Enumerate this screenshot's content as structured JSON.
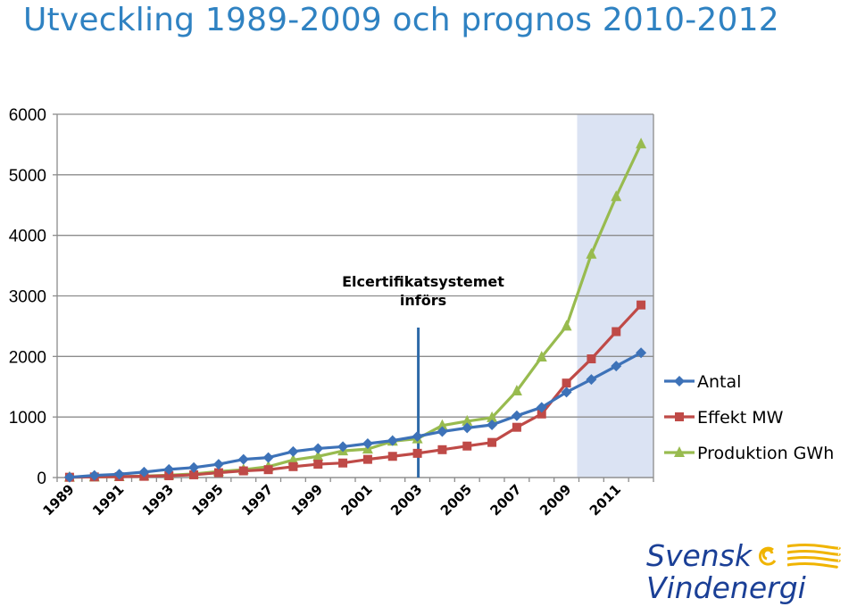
{
  "title": "Utveckling 1989-2009 och prognos 2010-2012",
  "logo": {
    "line1": "Svensk",
    "line2": "Vindenergi"
  },
  "chart_data": {
    "type": "line",
    "x": [
      1989,
      1990,
      1991,
      1992,
      1993,
      1994,
      1995,
      1996,
      1997,
      1998,
      1999,
      2000,
      2001,
      2002,
      2003,
      2004,
      2005,
      2006,
      2007,
      2008,
      2009,
      2010,
      2011,
      2012
    ],
    "x_tick_labels": [
      "1989",
      "1991",
      "1993",
      "1995",
      "1997",
      "1999",
      "2001",
      "2003",
      "2005",
      "2007",
      "2009",
      "2011"
    ],
    "ylim": [
      0,
      6000
    ],
    "y_ticks": [
      0,
      1000,
      2000,
      3000,
      4000,
      5000,
      6000
    ],
    "y_tick_labels": [
      "0",
      "1000",
      "2000",
      "3000",
      "4000",
      "5000",
      "6000"
    ],
    "grid": "horizontal",
    "legend_position": "right",
    "forecast_shading": {
      "from": 2010,
      "to": 2012,
      "color": "#dbe3f3"
    },
    "annotation": {
      "lines": [
        "Elcertifikatsystemet",
        "införs"
      ],
      "x": 2003,
      "color": "#2e6aa8"
    },
    "series": [
      {
        "name": "Antal",
        "color": "#3d72b8",
        "marker": "diamond",
        "values": [
          5,
          35,
          55,
          90,
          135,
          165,
          220,
          300,
          330,
          430,
          480,
          510,
          560,
          610,
          680,
          760,
          820,
          870,
          1020,
          1160,
          1410,
          1620,
          1840,
          2060
        ]
      },
      {
        "name": "Effekt MW",
        "color": "#bf4a47",
        "marker": "square",
        "values": [
          5,
          10,
          15,
          20,
          30,
          45,
          80,
          110,
          130,
          180,
          220,
          240,
          300,
          350,
          400,
          460,
          520,
          580,
          830,
          1050,
          1560,
          1960,
          2410,
          2850
        ]
      },
      {
        "name": "Produktion GWh",
        "color": "#98bb4f",
        "marker": "triangle",
        "values": [
          5,
          10,
          15,
          25,
          40,
          60,
          100,
          130,
          180,
          290,
          350,
          440,
          470,
          600,
          640,
          860,
          930,
          990,
          1430,
          1990,
          2500,
          3690,
          4640,
          5510
        ]
      }
    ]
  }
}
